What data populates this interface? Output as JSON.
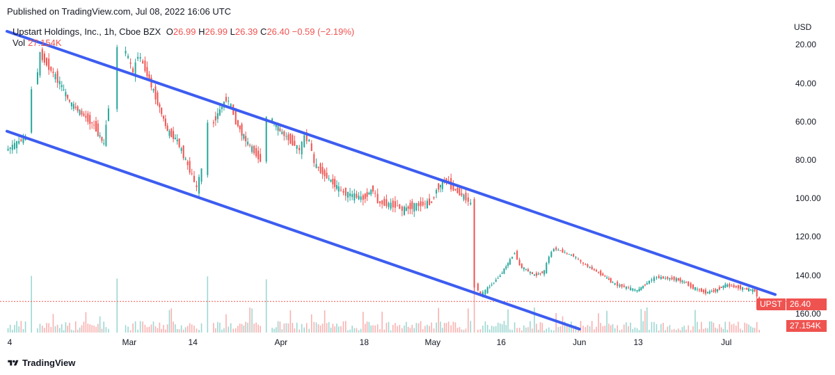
{
  "published": "Published on TradingView.com, Jul 08, 2022 16:06 UTC",
  "legend": {
    "name": "Upstart Holdings, Inc., 1h, Cboe BZX",
    "o_label": "O",
    "o_value": "26.99",
    "h_label": "H",
    "h_value": "26.99",
    "l_label": "L",
    "l_value": "26.39",
    "c_label": "C",
    "c_value": "26.40",
    "change": "−0.59 (−2.19%)",
    "vol_label": "Vol",
    "vol_value": "27.154K"
  },
  "axis": {
    "currency": "USD",
    "y_ticks": [
      "160.00",
      "140.00",
      "120.00",
      "100.00",
      "80.00",
      "60.00",
      "40.00",
      "20.00"
    ],
    "x_ticks": [
      "4",
      "Mar",
      "14",
      "Apr",
      "18",
      "May",
      "16",
      "Jun",
      "13",
      "Jul"
    ]
  },
  "tags": {
    "symbol": "UPST",
    "price": "26.40",
    "volume": "27.154K"
  },
  "brand": "TradingView",
  "colors": {
    "up": "#26a69a",
    "down": "#ef5350",
    "trendline": "#3d5df0",
    "price_line": "#ef5350"
  },
  "chart_data": {
    "type": "candlestick",
    "ylim": [
      16,
      167
    ],
    "y_ticks": [
      20,
      40,
      60,
      80,
      100,
      120,
      140,
      160
    ],
    "x_ticks": [
      "4",
      "Mar",
      "14",
      "Apr",
      "18",
      "May",
      "16",
      "Jun",
      "13",
      "Jul"
    ],
    "last_price": 26.4,
    "path": [
      [
        "Feb 4",
        105
      ],
      [
        "Feb 8",
        112
      ],
      [
        "Feb 10",
        138
      ],
      [
        "Feb 11",
        155
      ],
      [
        "Feb 15",
        140
      ],
      [
        "Feb 17",
        130
      ],
      [
        "Feb 22",
        118
      ],
      [
        "Feb 24",
        108
      ],
      [
        "Feb 25",
        128
      ],
      [
        "Feb 28",
        158
      ],
      [
        "Mar 1",
        153
      ],
      [
        "Mar 2",
        145
      ],
      [
        "Mar 3",
        155
      ],
      [
        "Mar 4",
        150
      ],
      [
        "Mar 7",
        130
      ],
      [
        "Mar 9",
        115
      ],
      [
        "Mar 11",
        110
      ],
      [
        "Mar 14",
        92
      ],
      [
        "Mar 15",
        85
      ],
      [
        "Mar 16",
        95
      ],
      [
        "Mar 18",
        118
      ],
      [
        "Mar 21",
        132
      ],
      [
        "Mar 22",
        128
      ],
      [
        "Mar 23",
        120
      ],
      [
        "Mar 25",
        110
      ],
      [
        "Mar 28",
        100
      ],
      [
        "Mar 30",
        122
      ],
      [
        "Apr 1",
        115
      ],
      [
        "Apr 4",
        108
      ],
      [
        "Apr 5",
        105
      ],
      [
        "Apr 6",
        112
      ],
      [
        "Apr 7",
        110
      ],
      [
        "Apr 8",
        98
      ],
      [
        "Apr 11",
        90
      ],
      [
        "Apr 13",
        85
      ],
      [
        "Apr 14",
        83
      ],
      [
        "Apr 18",
        80
      ],
      [
        "Apr 20",
        85
      ],
      [
        "Apr 21",
        78
      ],
      [
        "Apr 25",
        76
      ],
      [
        "Apr 26",
        74
      ],
      [
        "Apr 28",
        76
      ],
      [
        "May 2",
        78
      ],
      [
        "May 3",
        85
      ],
      [
        "May 5",
        90
      ],
      [
        "May 6",
        86
      ],
      [
        "May 9",
        80
      ],
      [
        "May 10",
        77
      ],
      [
        "May 11",
        35
      ],
      [
        "May 12",
        30
      ],
      [
        "May 13",
        32
      ],
      [
        "May 16",
        40
      ],
      [
        "May 18",
        48
      ],
      [
        "May 19",
        52
      ],
      [
        "May 20",
        45
      ],
      [
        "May 23",
        40
      ],
      [
        "May 25",
        42
      ],
      [
        "May 26",
        50
      ],
      [
        "May 27",
        54
      ],
      [
        "May 31",
        50
      ],
      [
        "Jun 1",
        48
      ],
      [
        "Jun 2",
        46
      ],
      [
        "Jun 6",
        40
      ],
      [
        "Jun 8",
        36
      ],
      [
        "Jun 9",
        35
      ],
      [
        "Jun 13",
        32
      ],
      [
        "Jun 15",
        36
      ],
      [
        "Jun 16",
        38
      ],
      [
        "Jun 17",
        39
      ],
      [
        "Jun 21",
        38
      ],
      [
        "Jun 23",
        36
      ],
      [
        "Jun 24",
        34
      ],
      [
        "Jun 27",
        31
      ],
      [
        "Jun 29",
        32
      ],
      [
        "Jul 1",
        35
      ],
      [
        "Jul 5",
        33
      ],
      [
        "Jul 7",
        32
      ],
      [
        "Jul 8",
        26.4
      ]
    ],
    "trendlines": [
      {
        "name": "",
        "from": [
          "Feb 4",
          167
        ],
        "to": [
          "Jul 11",
          30
        ]
      },
      {
        "name": "",
        "from": [
          "Feb 4",
          115
        ],
        "to": [
          "Jun 1",
          12
        ]
      }
    ]
  }
}
